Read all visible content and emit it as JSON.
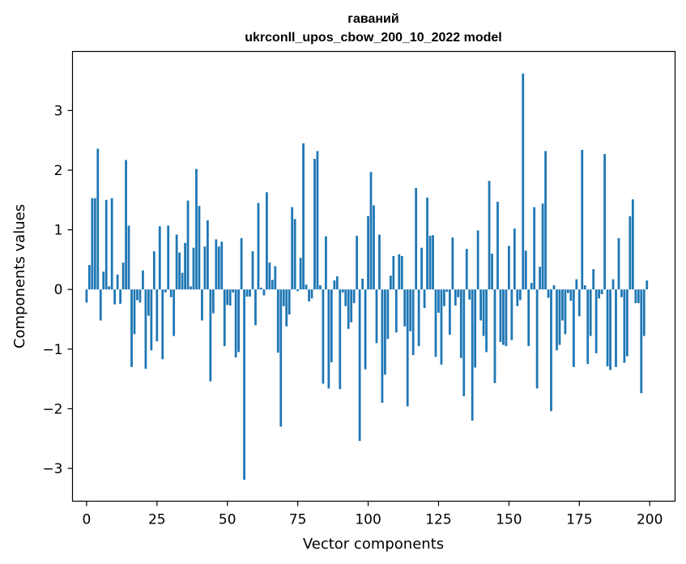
{
  "chart_data": {
    "type": "bar",
    "title": "гаваний",
    "subtitle": "ukrconll_upos_cbow_200_10_2022 model",
    "xlabel": "Vector components",
    "ylabel": "Components values",
    "xlim": [
      -5,
      209
    ],
    "ylim": [
      -3.55,
      3.99
    ],
    "xticks": [
      0,
      25,
      50,
      75,
      100,
      125,
      150,
      175,
      200
    ],
    "yticks": [
      -3,
      -2,
      -1,
      0,
      1,
      2,
      3
    ],
    "ytick_labels": [
      "−3",
      "−2",
      "−1",
      "0",
      "1",
      "2",
      "3"
    ],
    "bar_color": "#1f77b4",
    "grid": false,
    "x": [
      0,
      1,
      2,
      3,
      4,
      5,
      6,
      7,
      8,
      9,
      10,
      11,
      12,
      13,
      14,
      15,
      16,
      17,
      18,
      19,
      20,
      21,
      22,
      23,
      24,
      25,
      26,
      27,
      28,
      29,
      30,
      31,
      32,
      33,
      34,
      35,
      36,
      37,
      38,
      39,
      40,
      41,
      42,
      43,
      44,
      45,
      46,
      47,
      48,
      49,
      50,
      51,
      52,
      53,
      54,
      55,
      56,
      57,
      58,
      59,
      60,
      61,
      62,
      63,
      64,
      65,
      66,
      67,
      68,
      69,
      70,
      71,
      72,
      73,
      74,
      75,
      76,
      77,
      78,
      79,
      80,
      81,
      82,
      83,
      84,
      85,
      86,
      87,
      88,
      89,
      90,
      91,
      92,
      93,
      94,
      95,
      96,
      97,
      98,
      99,
      100,
      101,
      102,
      103,
      104,
      105,
      106,
      107,
      108,
      109,
      110,
      111,
      112,
      113,
      114,
      115,
      116,
      117,
      118,
      119,
      120,
      121,
      122,
      123,
      124,
      125,
      126,
      127,
      128,
      129,
      130,
      131,
      132,
      133,
      134,
      135,
      136,
      137,
      138,
      139,
      140,
      141,
      142,
      143,
      144,
      145,
      146,
      147,
      148,
      149,
      150,
      151,
      152,
      153,
      154,
      155,
      156,
      157,
      158,
      159,
      160,
      161,
      162,
      163,
      164,
      165,
      166,
      167,
      168,
      169,
      170,
      171,
      172,
      173,
      174,
      175,
      176,
      177,
      178,
      179,
      180,
      181,
      182,
      183,
      184,
      185,
      186,
      187,
      188,
      189,
      190,
      191,
      192,
      193,
      194,
      195,
      196,
      197,
      198,
      199
    ],
    "values": [
      -0.22,
      0.41,
      1.53,
      1.53,
      2.36,
      -0.52,
      0.3,
      1.5,
      0.05,
      1.53,
      -0.25,
      0.25,
      -0.24,
      0.45,
      2.17,
      1.07,
      -1.3,
      -0.75,
      -0.18,
      -0.22,
      0.32,
      -1.33,
      -0.44,
      -1.02,
      0.64,
      -0.87,
      1.06,
      -1.17,
      -0.05,
      1.07,
      -0.13,
      -0.78,
      0.92,
      0.62,
      0.28,
      0.78,
      1.49,
      0.05,
      0.7,
      2.02,
      1.4,
      -0.52,
      0.72,
      1.16,
      -1.54,
      -0.4,
      0.84,
      0.72,
      0.8,
      -0.95,
      -0.26,
      -0.27,
      -0.05,
      -1.14,
      -1.05,
      0.86,
      -3.19,
      -0.12,
      -0.12,
      0.64,
      -0.6,
      1.45,
      0.03,
      -0.1,
      1.63,
      0.45,
      0.16,
      0.39,
      -1.06,
      -2.3,
      -0.28,
      -0.62,
      -0.42,
      1.38,
      1.18,
      -0.03,
      0.53,
      2.45,
      0.08,
      -0.2,
      -0.15,
      2.19,
      2.32,
      0.07,
      -1.58,
      0.89,
      -1.66,
      -1.22,
      0.15,
      0.22,
      -1.67,
      -0.05,
      -0.28,
      -0.66,
      -0.55,
      -0.23,
      0.9,
      -2.54,
      0.18,
      -1.34,
      1.23,
      1.97,
      1.41,
      -0.9,
      0.92,
      -1.9,
      -1.43,
      -0.83,
      0.23,
      0.56,
      -0.72,
      0.59,
      0.56,
      -0.62,
      -1.96,
      -0.7,
      -1.1,
      1.7,
      -0.95,
      0.7,
      -0.31,
      1.54,
      0.9,
      0.91,
      -1.13,
      -0.39,
      -1.26,
      -0.28,
      -0.04,
      -0.76,
      0.87,
      -0.27,
      -0.13,
      -1.15,
      -1.79,
      0.68,
      -0.17,
      -2.2,
      -1.31,
      0.99,
      -0.52,
      -0.78,
      -1.05,
      1.82,
      0.6,
      -1.57,
      1.47,
      -0.88,
      -0.93,
      -0.95,
      0.73,
      -0.85,
      1.02,
      -0.28,
      -0.18,
      3.62,
      0.65,
      -0.95,
      0.11,
      1.38,
      -1.66,
      0.38,
      1.44,
      2.32,
      -0.14,
      -2.04,
      0.07,
      -1.02,
      -0.93,
      -0.52,
      -0.75,
      -0.06,
      -0.19,
      -1.3,
      0.17,
      -0.45,
      2.34,
      0.07,
      -1.25,
      -0.78,
      0.34,
      -1.07,
      -0.15,
      -0.08,
      2.27,
      -1.29,
      -1.35,
      0.17,
      -1.3,
      0.86,
      -0.13,
      -1.23,
      -1.12,
      1.23,
      1.51,
      -0.23,
      -0.23,
      -1.74,
      -0.78,
      0.15
    ]
  }
}
